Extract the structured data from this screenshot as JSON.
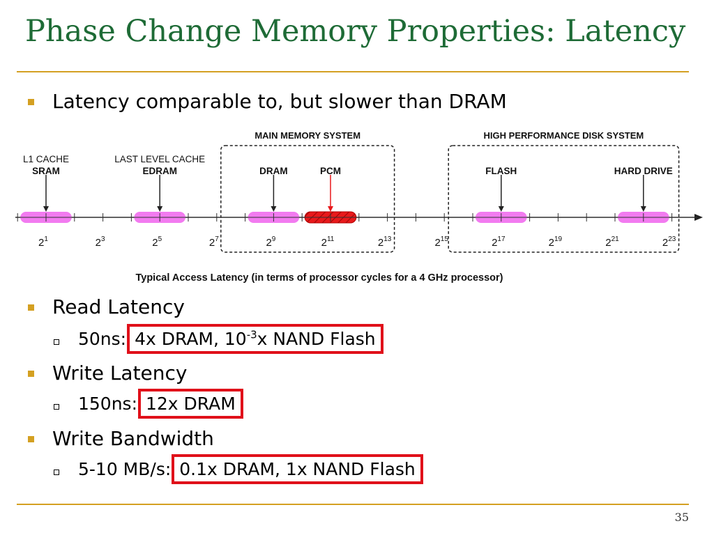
{
  "slide": {
    "title": "Phase Change Memory Properties: Latency",
    "page_number": "35",
    "colors": {
      "title": "#1e6b36",
      "rule": "#d4a022",
      "bullet": "#d4a022",
      "highlight_box": "#e0101a",
      "memory_range": "#f27bf0",
      "pcm_range": "#e8191b"
    }
  },
  "bullets": [
    {
      "text": "Latency comparable to, but slower than DRAM"
    },
    {
      "text": "Read Latency"
    },
    {
      "text": "Write Latency"
    },
    {
      "text": "Write Bandwidth"
    }
  ],
  "sub_bullets": [
    {
      "prefix": "50ns:",
      "boxed_pre": "4x DRAM, 10",
      "boxed_sup": "-3",
      "boxed_post": "x NAND Flash"
    },
    {
      "prefix": "150ns:",
      "boxed": "12x DRAM"
    },
    {
      "prefix": "5-10 MB/s:",
      "boxed": "0.1x DRAM, 1x NAND Flash"
    }
  ],
  "chart_data": {
    "type": "diagram",
    "caption": "Typical Access Latency (in terms of processor cycles for a 4 GHz processor)",
    "axis": {
      "scale": "log2",
      "tick_base": "2",
      "tick_exponents": [
        "1",
        "3",
        "5",
        "7",
        "9",
        "11",
        "13",
        "15",
        "17",
        "19",
        "21",
        "23"
      ]
    },
    "groups": [
      {
        "label": "MAIN MEMORY SYSTEM",
        "range_exp": [
          7,
          13
        ]
      },
      {
        "label": "HIGH PERFORMANCE DISK SYSTEM",
        "range_exp": [
          15,
          23
        ]
      }
    ],
    "ranges": [
      {
        "label_line1": "L1 CACHE",
        "label_line2": "SRAM",
        "from_exp": 0,
        "to_exp": 2,
        "marker_exp": 1,
        "style": "pink"
      },
      {
        "label_line1": "LAST LEVEL CACHE",
        "label_line2": "EDRAM",
        "from_exp": 4,
        "to_exp": 6,
        "marker_exp": 5,
        "style": "pink"
      },
      {
        "label_line1": "",
        "label_line2": "DRAM",
        "from_exp": 8,
        "to_exp": 10,
        "marker_exp": 9,
        "style": "pink"
      },
      {
        "label_line1": "",
        "label_line2": "PCM",
        "from_exp": 10,
        "to_exp": 12,
        "marker_exp": 11,
        "style": "red"
      },
      {
        "label_line1": "",
        "label_line2": "FLASH",
        "from_exp": 16,
        "to_exp": 18,
        "marker_exp": 17,
        "style": "pink"
      },
      {
        "label_line1": "",
        "label_line2": "HARD DRIVE",
        "from_exp": 21,
        "to_exp": 23,
        "marker_exp": 22,
        "style": "pink"
      }
    ]
  }
}
